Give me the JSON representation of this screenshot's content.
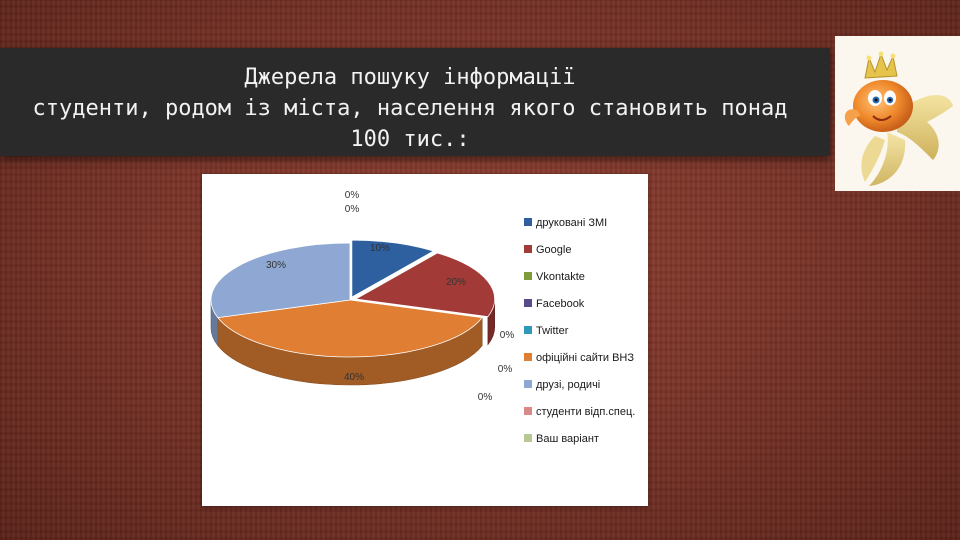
{
  "slide": {
    "title": "Джерела пошуку інформації\nстуденти, родом із міста, населення якого становить понад 100 тис.:"
  },
  "chart_data": {
    "type": "pie",
    "style": "3d-exploded",
    "legend_position": "right",
    "categories": [
      "друковані ЗМІ",
      "Google",
      "Vkontakte",
      "Facebook",
      "Twitter",
      "офіційні сайти ВНЗ",
      "друзі, родичі",
      "студенти відп.спец.",
      "Ваш варіант"
    ],
    "values": [
      10,
      20,
      0,
      0,
      0,
      40,
      30,
      0,
      0
    ],
    "data_labels": [
      "10%",
      "20%",
      "0%",
      "0%",
      "0%",
      "40%",
      "30%",
      "0%",
      "0%"
    ],
    "colors": [
      "#2e5f9e",
      "#a23b38",
      "#7f9c3a",
      "#5a4a8c",
      "#2f99b7",
      "#e07f33",
      "#8fa8d3",
      "#d98a88",
      "#b6c994"
    ]
  },
  "decoration": {
    "image": "goldfish with crown"
  }
}
